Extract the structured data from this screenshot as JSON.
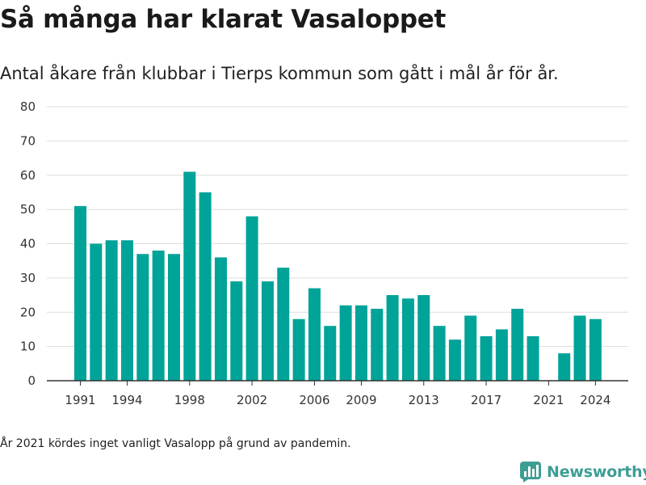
{
  "header": {
    "title": "Så många har klarat Vasaloppet",
    "subtitle": "Antal åkare från klubbar i Tierps kommun som gått i mål år för år."
  },
  "footer": {
    "note": "År 2021 kördes inget vanligt Vasalopp på grund av pandemin.",
    "brand": "Newsworthy"
  },
  "colors": {
    "bar": "#00a398",
    "grid": "#dddddd",
    "axis": "#333333",
    "brand": "#3e9e95"
  },
  "chart_data": {
    "type": "bar",
    "title": "Så många har klarat Vasaloppet",
    "subtitle": "Antal åkare från klubbar i Tierps kommun som gått i mål år för år.",
    "xlabel": "",
    "ylabel": "",
    "ylim": [
      0,
      80
    ],
    "yticks": [
      0,
      10,
      20,
      30,
      40,
      50,
      60,
      70,
      80
    ],
    "xticks": [
      1991,
      1994,
      1998,
      2002,
      2006,
      2009,
      2013,
      2017,
      2021,
      2024
    ],
    "grid": true,
    "legend": "none",
    "categories": [
      1991,
      1992,
      1993,
      1994,
      1995,
      1996,
      1997,
      1998,
      1999,
      2000,
      2001,
      2002,
      2003,
      2004,
      2005,
      2006,
      2007,
      2008,
      2009,
      2010,
      2011,
      2012,
      2013,
      2014,
      2015,
      2016,
      2017,
      2018,
      2019,
      2020,
      2021,
      2022,
      2023,
      2024
    ],
    "values": [
      51,
      40,
      41,
      41,
      37,
      38,
      37,
      61,
      55,
      36,
      29,
      48,
      29,
      33,
      18,
      27,
      16,
      22,
      22,
      21,
      25,
      24,
      25,
      16,
      12,
      19,
      13,
      15,
      21,
      13,
      0,
      8,
      19,
      18
    ]
  }
}
